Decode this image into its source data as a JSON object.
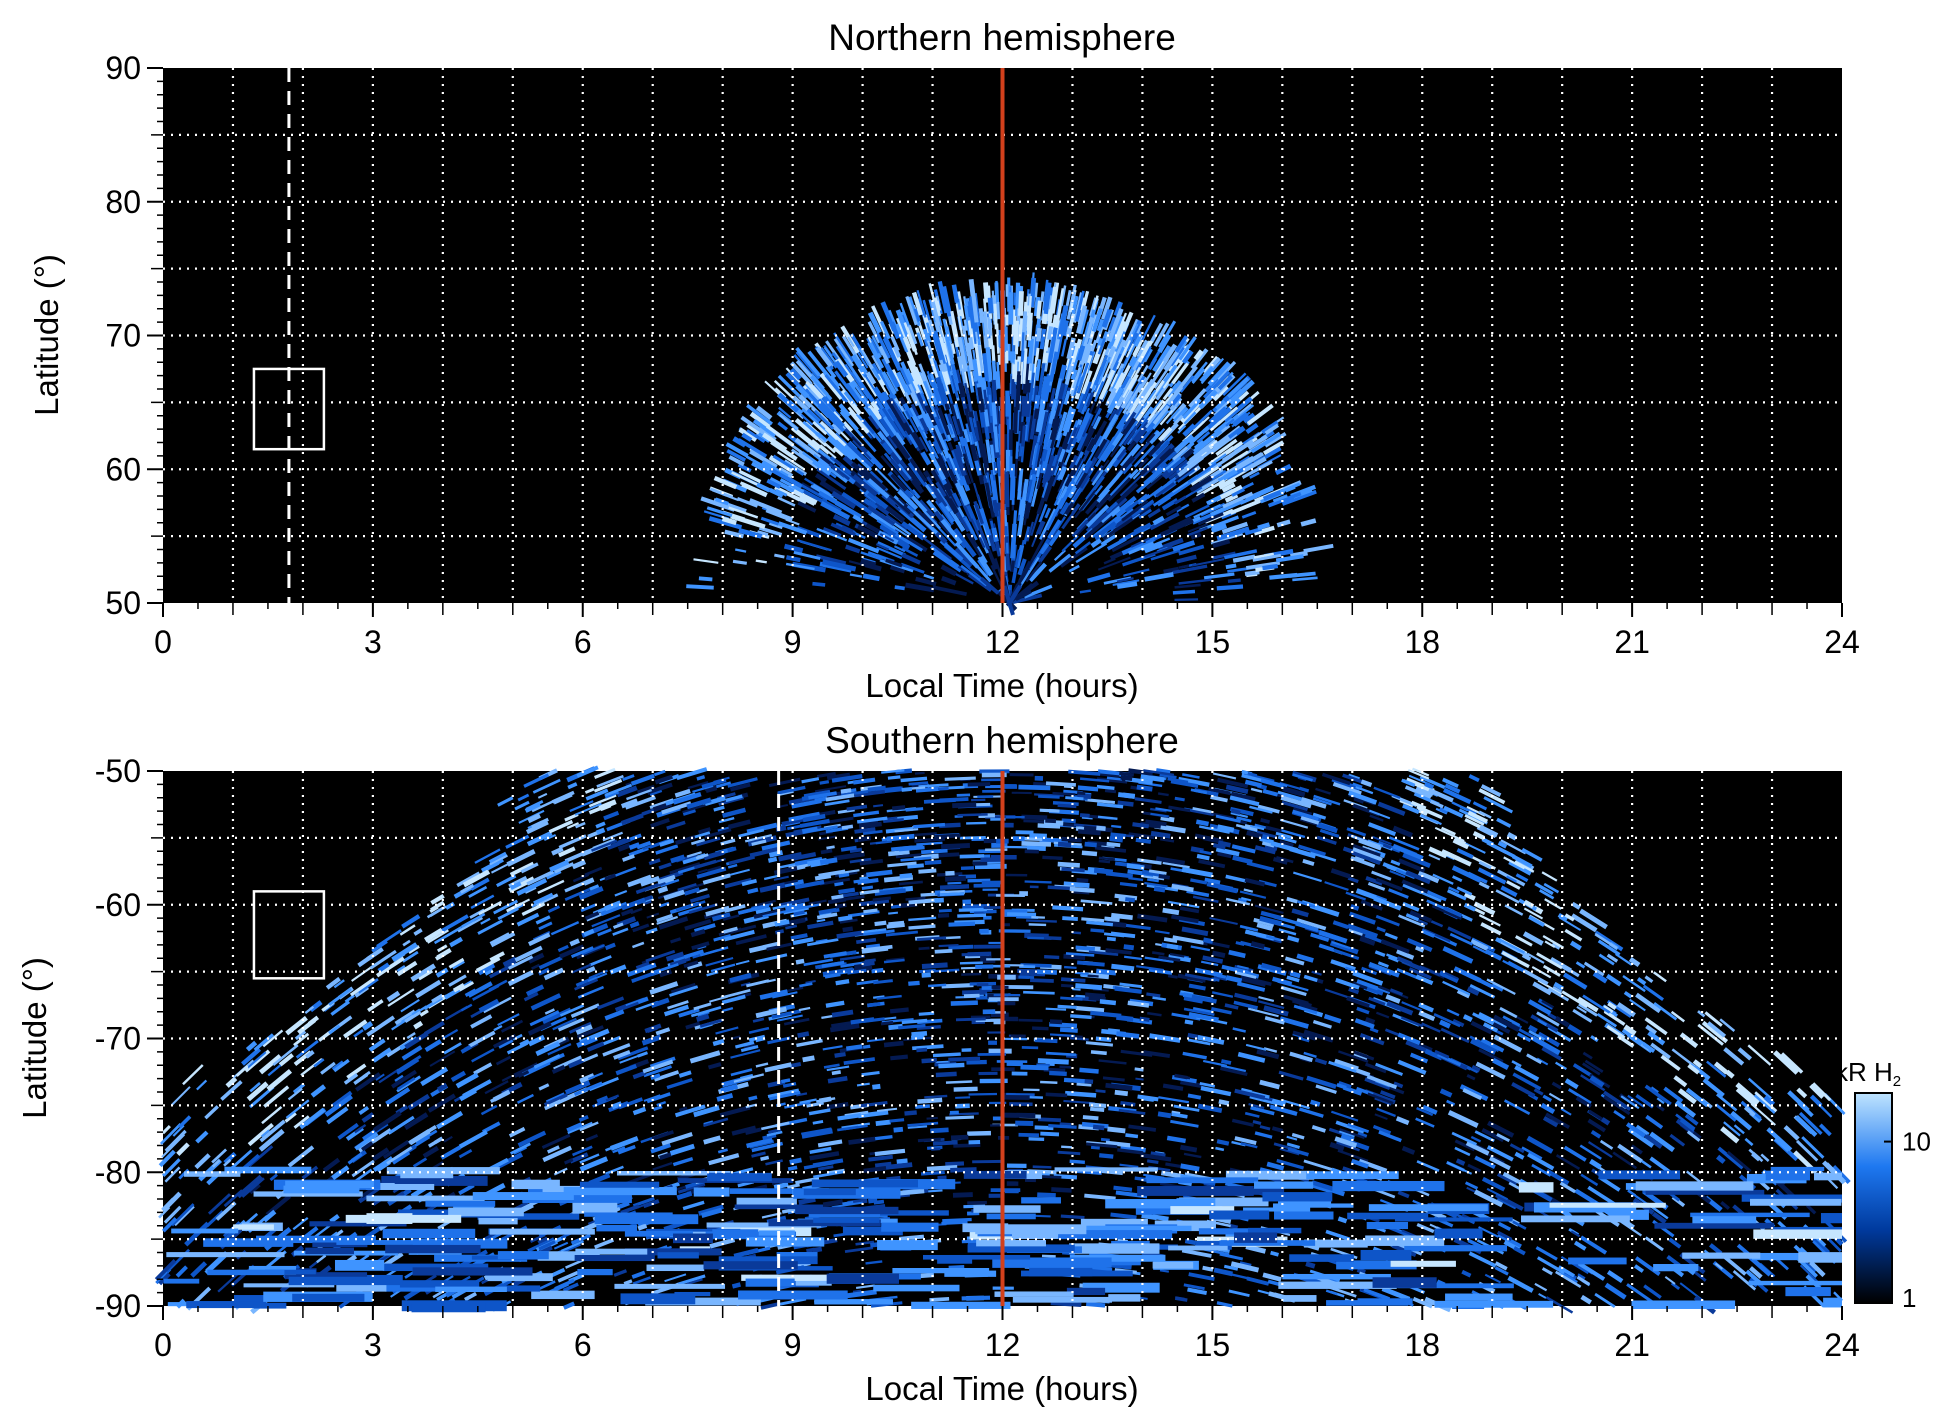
{
  "chart_data": [
    {
      "type": "heatmap",
      "title": "Northern hemisphere",
      "xlabel": "Local Time (hours)",
      "ylabel": "Latitude (°)",
      "xlim": [
        0,
        24
      ],
      "ylim": [
        50,
        90
      ],
      "x_ticks": [
        "0",
        "3",
        "6",
        "9",
        "12",
        "15",
        "18",
        "21",
        "24"
      ],
      "y_ticks": [
        "50",
        "60",
        "70",
        "80",
        "90"
      ],
      "grid": true,
      "background": "black",
      "emission_region": {
        "local_time_range": [
          7.6,
          16.6
        ],
        "max_latitude": 73.5,
        "peak_local_time": 12.5
      },
      "reference_line": {
        "local_time": 12,
        "color": "#d2401c"
      },
      "dashed_line": {
        "local_time": 1.8,
        "color": "#ffffff"
      },
      "box": {
        "local_time": [
          1.3,
          2.3
        ],
        "latitude": [
          61.5,
          67.5
        ]
      }
    },
    {
      "type": "heatmap",
      "title": "Southern hemisphere",
      "xlabel": "Local Time (hours)",
      "ylabel": "Latitude (°)",
      "xlim": [
        0,
        24
      ],
      "ylim": [
        -90,
        -50
      ],
      "x_ticks": [
        "0",
        "3",
        "6",
        "9",
        "12",
        "15",
        "18",
        "21",
        "24"
      ],
      "y_ticks": [
        "-90",
        "-80",
        "-70",
        "-60",
        "-50"
      ],
      "grid": true,
      "background": "black",
      "emission_region": {
        "local_time_range": [
          0,
          24
        ],
        "edge_latitude": -50,
        "edge_local_time": [
          5,
          19
        ]
      },
      "reference_line": {
        "local_time": 12,
        "color": "#d2401c"
      },
      "dashed_line": {
        "local_time": 8.8,
        "color": "#ffffff"
      },
      "box": {
        "local_time": [
          1.3,
          2.3
        ],
        "latitude": [
          -65.5,
          -59.0
        ]
      }
    }
  ],
  "colorbar": {
    "label_main": "kR H",
    "label_sub": "2",
    "scale": "log",
    "range": [
      1,
      20
    ],
    "tick_labels": [
      "1",
      "10"
    ],
    "colors": [
      "#000000",
      "#003a9e",
      "#1e78f0",
      "#bfe4ff"
    ]
  }
}
